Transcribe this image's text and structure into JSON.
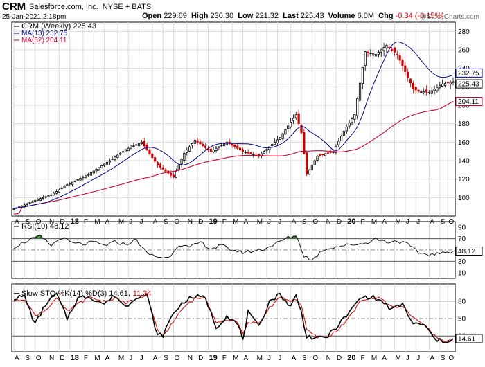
{
  "header": {
    "symbol": "CRM",
    "company": "Salesforce.com, Inc.",
    "exchange": "NYSE + BATS",
    "datetime": "25-Jan-2021 2:18pm",
    "open_label": "Open",
    "open": "229.69",
    "high_label": "High",
    "high": "230.30",
    "low_label": "Low",
    "low": "221.32",
    "last_label": "Last",
    "last": "225.43",
    "volume_label": "Volume",
    "volume": "6.0M",
    "chg_label": "Chg",
    "chg": "-0.34 (-0.15%)",
    "watermark": "@StockCharts.com"
  },
  "colors": {
    "up": "#000000",
    "down": "#cc0000",
    "ma13": "#000080",
    "ma52": "#cc0033",
    "rsi_fill": "#3c7a3c",
    "stoch_k": "#000000",
    "stoch_d": "#cc0000",
    "grid": "#d9d9d9"
  },
  "chart_data": {
    "type": "candlestick",
    "price_panel": {
      "legend": [
        "CRM (Weekly) 225.43",
        "MA(13) 232.75",
        "MA(52) 204.11"
      ],
      "y_ticks": [
        100,
        120,
        140,
        160,
        180,
        200,
        220,
        240,
        260,
        280
      ],
      "ylim": [
        80,
        290
      ],
      "last_labels": {
        "ma13": "232.75",
        "price": "225.43",
        "ma52": "204.11"
      },
      "anchors": {
        "t": [
          0,
          4,
          8,
          14,
          20,
          28,
          36,
          42,
          48,
          54,
          60,
          64,
          68,
          74,
          80,
          86,
          92,
          100,
          106,
          108,
          110,
          114,
          120,
          124,
          128,
          132,
          136,
          140,
          144,
          150,
          152,
          156,
          161,
          165
        ],
        "close": [
          88,
          92,
          97,
          103,
          114,
          125,
          140,
          152,
          160,
          135,
          122,
          148,
          162,
          150,
          160,
          150,
          145,
          165,
          190,
          170,
          125,
          145,
          150,
          172,
          190,
          258,
          255,
          265,
          255,
          218,
          215,
          214,
          223,
          225.43
        ]
      },
      "ma13_last": 232.75,
      "ma52_last": 204.11
    },
    "rsi_panel": {
      "legend": "RSI(10) 48.12",
      "y_ticks": [
        10,
        30,
        50,
        70,
        90
      ],
      "ylim": [
        0,
        100
      ],
      "last_label": "48.12",
      "anchors": {
        "t": [
          0,
          3,
          6,
          10,
          14,
          18,
          22,
          26,
          30,
          34,
          38,
          42,
          46,
          50,
          54,
          58,
          62,
          66,
          70,
          74,
          78,
          82,
          86,
          90,
          94,
          98,
          102,
          106,
          109,
          112,
          116,
          120,
          124,
          128,
          132,
          136,
          140,
          144,
          148,
          152,
          156,
          161,
          165
        ],
        "value": [
          55,
          62,
          68,
          74,
          58,
          72,
          62,
          60,
          64,
          58,
          64,
          60,
          68,
          44,
          38,
          36,
          60,
          54,
          64,
          52,
          58,
          50,
          46,
          48,
          52,
          60,
          70,
          76,
          40,
          32,
          50,
          55,
          58,
          60,
          62,
          70,
          64,
          66,
          60,
          45,
          42,
          44,
          48.12
        ]
      }
    },
    "stoch_panel": {
      "legend": "Slow STO %K(14) %D(3) 14.61, 11.34",
      "legend_k": "14.61",
      "legend_d": "11.34",
      "y_ticks": [
        20,
        50,
        80
      ],
      "ylim": [
        0,
        100
      ],
      "last_label": "14.61",
      "anchors": {
        "t": [
          0,
          4,
          8,
          12,
          16,
          20,
          24,
          28,
          34,
          38,
          42,
          46,
          50,
          54,
          56,
          60,
          64,
          68,
          72,
          76,
          80,
          84,
          86,
          88,
          92,
          96,
          100,
          104,
          106,
          108,
          110,
          114,
          118,
          122,
          126,
          130,
          134,
          138,
          142,
          146,
          150,
          154,
          158,
          161,
          165
        ],
        "k": [
          85,
          88,
          40,
          75,
          92,
          50,
          85,
          88,
          75,
          90,
          70,
          88,
          90,
          20,
          22,
          60,
          80,
          88,
          85,
          35,
          55,
          40,
          15,
          60,
          35,
          80,
          92,
          70,
          90,
          60,
          20,
          15,
          20,
          40,
          60,
          85,
          88,
          80,
          65,
          75,
          40,
          40,
          15,
          10,
          14.61
        ],
        "d": [
          80,
          84,
          55,
          65,
          85,
          62,
          75,
          86,
          80,
          85,
          76,
          84,
          88,
          30,
          20,
          45,
          70,
          84,
          86,
          45,
          48,
          45,
          22,
          45,
          40,
          68,
          88,
          80,
          84,
          72,
          30,
          18,
          18,
          32,
          52,
          78,
          86,
          84,
          70,
          72,
          50,
          42,
          20,
          12,
          11.34
        ]
      }
    },
    "x_axis": {
      "weeks": 166,
      "ticks": [
        {
          "w": 0,
          "label": "A"
        },
        {
          "w": 4,
          "label": "S"
        },
        {
          "w": 8,
          "label": "O"
        },
        {
          "w": 13,
          "label": "N"
        },
        {
          "w": 17,
          "label": "D"
        },
        {
          "w": 21,
          "label": "18",
          "year": true
        },
        {
          "w": 26,
          "label": "F"
        },
        {
          "w": 30,
          "label": "M"
        },
        {
          "w": 34,
          "label": "A"
        },
        {
          "w": 39,
          "label": "M"
        },
        {
          "w": 43,
          "label": "J"
        },
        {
          "w": 47,
          "label": "J"
        },
        {
          "w": 52,
          "label": "A"
        },
        {
          "w": 56,
          "label": "S"
        },
        {
          "w": 60,
          "label": "O"
        },
        {
          "w": 65,
          "label": "N"
        },
        {
          "w": 69,
          "label": "D"
        },
        {
          "w": 73,
          "label": "19",
          "year": true
        },
        {
          "w": 78,
          "label": "F"
        },
        {
          "w": 82,
          "label": "M"
        },
        {
          "w": 86,
          "label": "A"
        },
        {
          "w": 91,
          "label": "M"
        },
        {
          "w": 95,
          "label": "J"
        },
        {
          "w": 99,
          "label": "J"
        },
        {
          "w": 104,
          "label": "A"
        },
        {
          "w": 108,
          "label": "S"
        },
        {
          "w": 112,
          "label": "O"
        },
        {
          "w": 117,
          "label": "N"
        },
        {
          "w": 121,
          "label": "D"
        },
        {
          "w": 125,
          "label": "20",
          "year": true
        },
        {
          "w": 130,
          "label": "F"
        },
        {
          "w": 134,
          "label": "M"
        },
        {
          "w": 138,
          "label": "A"
        },
        {
          "w": 143,
          "label": "M"
        },
        {
          "w": 147,
          "label": "J"
        },
        {
          "w": 151,
          "label": "J"
        },
        {
          "w": 156,
          "label": "A"
        },
        {
          "w": 160,
          "label": "S"
        },
        {
          "w": 163,
          "label": "O"
        }
      ]
    }
  }
}
